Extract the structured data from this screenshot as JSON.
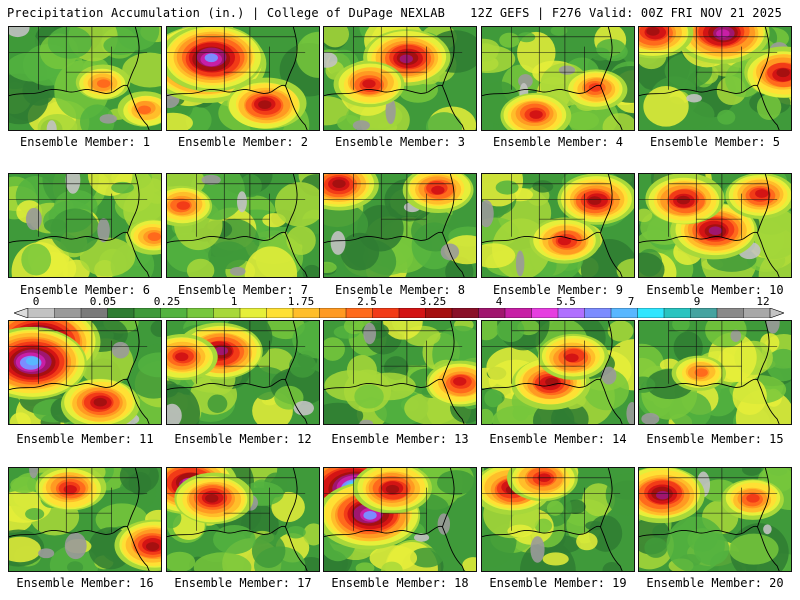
{
  "header": {
    "left_title": "Precipitation Accumulation (in.) | College of DuPage NEXLAB",
    "right_title": "12Z GEFS | F276 Valid: 00Z FRI NOV 21 2025"
  },
  "colorbar": {
    "tick_labels": [
      "0",
      "0.05",
      "0.25",
      "1",
      "1.75",
      "2.5",
      "3.25",
      "4",
      "5.5",
      "7",
      "9",
      "12"
    ],
    "colors": [
      "#dcdcdc",
      "#c2c2c2",
      "#9a9a9a",
      "#7a7a7a",
      "#2f7d32",
      "#3f9a3a",
      "#53b33f",
      "#77c73c",
      "#a8d83a",
      "#e6ef3a",
      "#ffe034",
      "#ffbe2a",
      "#ff9a22",
      "#ff6a1c",
      "#f23b17",
      "#d31414",
      "#a51010",
      "#8a1028",
      "#a0166e",
      "#c71fa6",
      "#e63ee0",
      "#b070ff",
      "#7c8cff",
      "#58b7ff",
      "#30e6ff",
      "#29c4c0",
      "#45a3a0",
      "#8a8a8a",
      "#a8a8a8",
      "#c4c4c4"
    ]
  },
  "panels": [
    {
      "label": "Ensemble Member: 1",
      "seed": 11,
      "hot": [
        [
          0.62,
          0.55,
          0.55
        ],
        [
          0.9,
          0.8,
          0.5
        ]
      ]
    },
    {
      "label": "Ensemble Member: 2",
      "seed": 23,
      "hot": [
        [
          0.25,
          0.35,
          2.6
        ],
        [
          0.3,
          0.3,
          1.8
        ],
        [
          0.65,
          0.75,
          1.1
        ]
      ]
    },
    {
      "label": "Ensemble Member: 3",
      "seed": 37,
      "hot": [
        [
          0.55,
          0.3,
          1.3
        ],
        [
          0.3,
          0.55,
          0.9
        ]
      ]
    },
    {
      "label": "Ensemble Member: 4",
      "seed": 41,
      "hot": [
        [
          0.35,
          0.85,
          0.8
        ],
        [
          0.75,
          0.6,
          0.6
        ]
      ]
    },
    {
      "label": "Ensemble Member: 5",
      "seed": 53,
      "hot": [
        [
          0.55,
          0.05,
          1.6
        ],
        [
          0.95,
          0.45,
          1.2
        ],
        [
          0.1,
          0.05,
          1.0
        ]
      ]
    },
    {
      "label": "Ensemble Member: 6",
      "seed": 61,
      "hot": [
        [
          0.95,
          0.6,
          0.5
        ]
      ]
    },
    {
      "label": "Ensemble Member: 7",
      "seed": 71,
      "hot": [
        [
          0.1,
          0.3,
          0.6
        ]
      ]
    },
    {
      "label": "Ensemble Member: 8",
      "seed": 83,
      "hot": [
        [
          0.1,
          0.1,
          1.0
        ],
        [
          0.75,
          0.15,
          0.9
        ]
      ]
    },
    {
      "label": "Ensemble Member: 9",
      "seed": 97,
      "hot": [
        [
          0.75,
          0.25,
          1.0
        ],
        [
          0.55,
          0.65,
          0.9
        ]
      ]
    },
    {
      "label": "Ensemble Member: 10",
      "seed": 103,
      "hot": [
        [
          0.5,
          0.55,
          1.4
        ],
        [
          0.3,
          0.25,
          1.1
        ],
        [
          0.8,
          0.2,
          0.9
        ]
      ]
    },
    {
      "label": "Ensemble Member: 11",
      "seed": 113,
      "hot": [
        [
          0.2,
          0.2,
          2.7
        ],
        [
          0.15,
          0.4,
          2.0
        ],
        [
          0.6,
          0.8,
          1.0
        ]
      ]
    },
    {
      "label": "Ensemble Member: 12",
      "seed": 127,
      "hot": [
        [
          0.35,
          0.3,
          1.4
        ],
        [
          0.1,
          0.35,
          0.9
        ]
      ]
    },
    {
      "label": "Ensemble Member: 13",
      "seed": 131,
      "hot": [
        [
          0.9,
          0.6,
          0.9
        ]
      ]
    },
    {
      "label": "Ensemble Member: 14",
      "seed": 139,
      "hot": [
        [
          0.45,
          0.6,
          1.2
        ],
        [
          0.6,
          0.35,
          0.9
        ]
      ]
    },
    {
      "label": "Ensemble Member: 15",
      "seed": 151,
      "hot": [
        [
          0.4,
          0.5,
          0.4
        ]
      ]
    },
    {
      "label": "Ensemble Member: 16",
      "seed": 163,
      "hot": [
        [
          0.95,
          0.75,
          1.1
        ],
        [
          0.4,
          0.2,
          0.8
        ]
      ]
    },
    {
      "label": "Ensemble Member: 17",
      "seed": 173,
      "hot": [
        [
          0.15,
          0.15,
          1.6
        ],
        [
          0.3,
          0.3,
          1.0
        ]
      ]
    },
    {
      "label": "Ensemble Member: 18",
      "seed": 181,
      "hot": [
        [
          0.2,
          0.2,
          2.5
        ],
        [
          0.3,
          0.45,
          1.8
        ],
        [
          0.45,
          0.2,
          1.0
        ]
      ]
    },
    {
      "label": "Ensemble Member: 19",
      "seed": 191,
      "hot": [
        [
          0.2,
          0.2,
          1.0
        ],
        [
          0.4,
          0.1,
          0.9
        ]
      ]
    },
    {
      "label": "Ensemble Member: 20",
      "seed": 199,
      "hot": [
        [
          0.15,
          0.25,
          1.4
        ],
        [
          0.75,
          0.3,
          0.6
        ]
      ]
    }
  ]
}
